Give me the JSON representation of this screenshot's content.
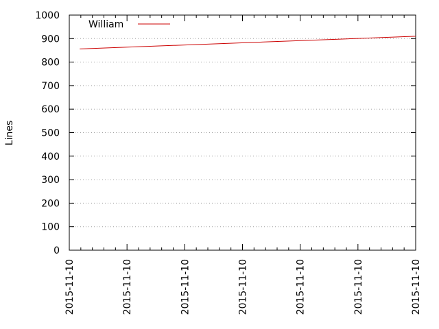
{
  "chart_data": {
    "type": "line",
    "title": "",
    "xlabel": "",
    "ylabel": "Lines",
    "ylim": [
      0,
      1000
    ],
    "yticks": [
      0,
      100,
      200,
      300,
      400,
      500,
      600,
      700,
      800,
      900,
      1000
    ],
    "xlim": [
      0,
      6
    ],
    "xtick_positions": [
      0,
      1,
      2,
      3,
      4,
      5,
      6
    ],
    "xtick_labels": [
      "2015-11-10",
      "2015-11-10",
      "2015-11-10",
      "2015-11-10",
      "2015-11-10",
      "2015-11-10",
      "2015-11-10"
    ],
    "grid": "horizontal dotted",
    "legend_position": "top-left",
    "series": [
      {
        "name": "William",
        "color": "#cc0000",
        "x": [
          0.18,
          6
        ],
        "y": [
          856,
          910
        ]
      }
    ]
  }
}
